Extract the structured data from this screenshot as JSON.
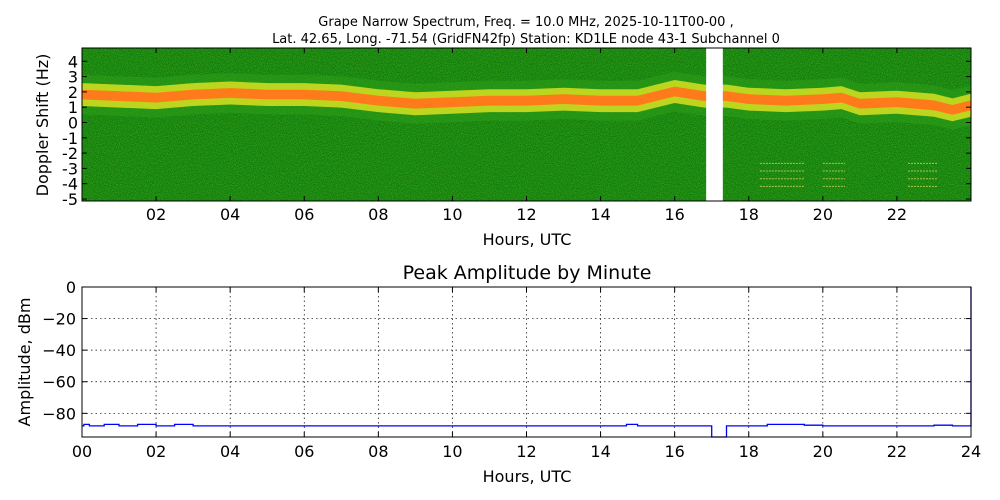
{
  "chart_data": [
    {
      "type": "heatmap",
      "title_line1": "Grape Narrow Spectrum, Freq. = 10.0 MHz, 2025-10-11T00-00 ,",
      "title_line2": "Lat.  42.65, Long. -71.54 (GridFN42fp) Station: KD1LE node 43-1 Subchannel 0",
      "xlabel": "Hours, UTC",
      "ylabel": "Doppler Shift (Hz)",
      "xlim": [
        0,
        24
      ],
      "ylim": [
        -5,
        5
      ],
      "xticks": [
        "02",
        "04",
        "06",
        "08",
        "10",
        "12",
        "14",
        "16",
        "18",
        "20",
        "22"
      ],
      "xtick_values": [
        2,
        4,
        6,
        8,
        10,
        12,
        14,
        16,
        18,
        20,
        22
      ],
      "yticks": [
        "4",
        "3",
        "2",
        "1",
        "0",
        "-1",
        "-2",
        "-3",
        "-4",
        "-5"
      ],
      "ytick_values": [
        4,
        3,
        2,
        1,
        0,
        -1,
        -2,
        -3,
        -4,
        -5
      ],
      "data_gap_hours": [
        16.85,
        17.3
      ],
      "colors": {
        "background": "#0a7d0a",
        "noise": "#2e9e1a",
        "near_signal": "#d8e020",
        "signal": "#ff7a1a"
      },
      "doppler_peak_hz": {
        "x": [
          0,
          1,
          2,
          3,
          4,
          5,
          6,
          7,
          8,
          9,
          10,
          11,
          12,
          13,
          14,
          15,
          16,
          16.8,
          17.4,
          18,
          19,
          20,
          20.5,
          21,
          22,
          23,
          23.5,
          24
        ],
        "y": [
          1.5,
          1.4,
          1.3,
          1.5,
          1.6,
          1.5,
          1.5,
          1.4,
          1.1,
          0.9,
          1.0,
          1.1,
          1.1,
          1.2,
          1.1,
          1.1,
          1.7,
          1.4,
          1.4,
          1.2,
          1.1,
          1.2,
          1.3,
          0.9,
          1.0,
          0.8,
          0.5,
          0.8
        ]
      }
    },
    {
      "type": "line",
      "title": "Peak Amplitude by Minute",
      "xlabel": "Hours, UTC",
      "ylabel": "Amplitude, dBm",
      "xlim": [
        0,
        24
      ],
      "ylim": [
        -95,
        0
      ],
      "xticks": [
        "00",
        "02",
        "04",
        "06",
        "08",
        "10",
        "12",
        "14",
        "16",
        "18",
        "20",
        "22",
        "24"
      ],
      "xtick_values": [
        0,
        2,
        4,
        6,
        8,
        10,
        12,
        14,
        16,
        18,
        20,
        22,
        24
      ],
      "yticks": [
        "0",
        "−20",
        "−40",
        "−60",
        "−80"
      ],
      "ytick_values": [
        0,
        -20,
        -40,
        -60,
        -80
      ],
      "grid": true,
      "line_color": "#0000ff",
      "series": [
        {
          "x": [
            0,
            0.05,
            0.2,
            0.6,
            1.0,
            1.5,
            2.0,
            2.5,
            3.0,
            3.5,
            4.0,
            5.0,
            6.0,
            7.0,
            8.0,
            9.0,
            10.0,
            11.0,
            12.0,
            13.0,
            14.0,
            14.7,
            15.0,
            16.0,
            16.8,
            17.0,
            17.35,
            17.4,
            18.0,
            18.5,
            19.0,
            19.5,
            20.0,
            21.0,
            22.0,
            23.0,
            23.5,
            23.9,
            23.97,
            24.0
          ],
          "y": [
            -88,
            -87,
            -88,
            -87,
            -88,
            -87,
            -88,
            -87,
            -88,
            -88,
            -88,
            -88,
            -88,
            -88,
            -88,
            -88,
            -88,
            -88,
            -88,
            -88,
            -88,
            -87,
            -88,
            -88,
            -88,
            -95,
            -95,
            -88,
            -88,
            -87,
            -87,
            -87.5,
            -88,
            -88,
            -88,
            -87.5,
            -88,
            -88,
            -88,
            0
          ]
        }
      ]
    }
  ]
}
